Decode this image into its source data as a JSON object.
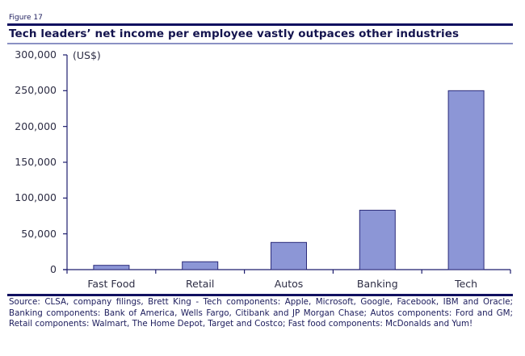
{
  "figure": {
    "label": "Figure 17",
    "title": "Tech leaders’ net income per employee vastly outpaces other industries",
    "unit": "(US$)",
    "source": "Source: CLSA, company filings, Brett King - Tech components: Apple, Microsoft, Google, Facebook, IBM and Oracle; Banking components: Bank of America, Wells Fargo, Citibank and JP Morgan Chase; Autos components: Ford and GM; Retail components: Walmart, The Home Depot, Target and Costco; Fast food components: McDonalds and Yum!"
  },
  "colors": {
    "bar_fill": "#8c96d6",
    "bar_stroke": "#2b2b7a",
    "axis": "#1e1e6e",
    "rule_dark": "#101060",
    "rule_light": "#8a91c4"
  },
  "axis": {
    "y_tick_labels": [
      "300,000",
      "250,000",
      "200,000",
      "150,000",
      "100,000",
      "50,000",
      "0"
    ],
    "x_tick_labels": [
      "Fast Food",
      "Retail",
      "Autos",
      "Banking",
      "Tech"
    ]
  },
  "chart_data": {
    "type": "bar",
    "title": "Tech leaders’ net income per employee vastly outpaces other industries",
    "categories": [
      "Fast Food",
      "Retail",
      "Autos",
      "Banking",
      "Tech"
    ],
    "values": [
      6000,
      11000,
      38000,
      83000,
      250000
    ],
    "xlabel": "",
    "ylabel": "(US$)",
    "ylim": [
      0,
      300000
    ],
    "yticks": [
      0,
      50000,
      100000,
      150000,
      200000,
      250000,
      300000
    ],
    "grid": false,
    "legend": null
  }
}
